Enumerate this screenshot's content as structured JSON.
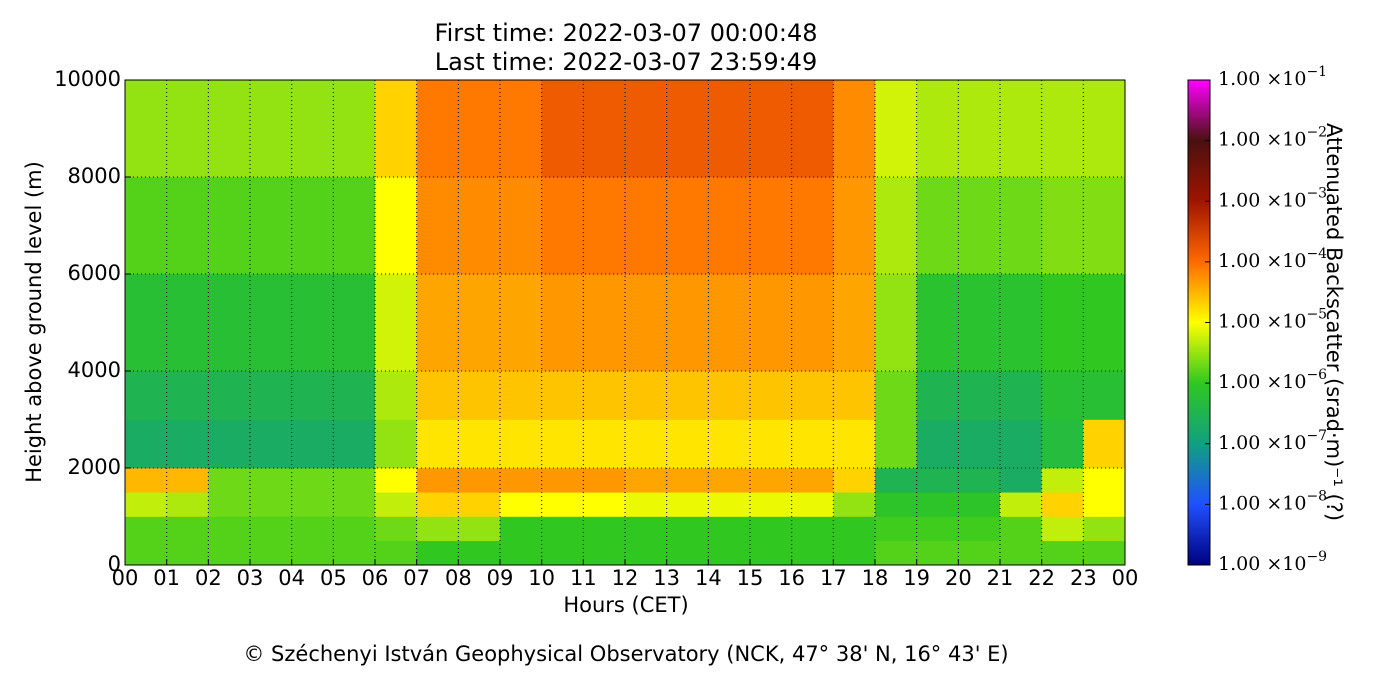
{
  "chart_data": {
    "type": "heatmap",
    "title": "First time: 2022-03-07 00:00:48",
    "subtitle": "Last time: 2022-03-07 23:59:49",
    "xlabel": "Hours (CET)",
    "ylabel": "Height above ground level (m)",
    "zlabel": "Attenuated Backscatter (srad·m)⁻¹ (?)",
    "caption": "© Széchenyi István Geophysical Observatory (NCK, 47° 38' N, 16° 43' E)",
    "xlim": [
      0,
      24
    ],
    "ylim": [
      0,
      10000
    ],
    "xticks": [
      {
        "value": 0,
        "label": "00"
      },
      {
        "value": 1,
        "label": "01"
      },
      {
        "value": 2,
        "label": "02"
      },
      {
        "value": 3,
        "label": "03"
      },
      {
        "value": 4,
        "label": "04"
      },
      {
        "value": 5,
        "label": "05"
      },
      {
        "value": 6,
        "label": "06"
      },
      {
        "value": 7,
        "label": "07"
      },
      {
        "value": 8,
        "label": "08"
      },
      {
        "value": 9,
        "label": "09"
      },
      {
        "value": 10,
        "label": "10"
      },
      {
        "value": 11,
        "label": "11"
      },
      {
        "value": 12,
        "label": "12"
      },
      {
        "value": 13,
        "label": "13"
      },
      {
        "value": 14,
        "label": "14"
      },
      {
        "value": 15,
        "label": "15"
      },
      {
        "value": 16,
        "label": "16"
      },
      {
        "value": 17,
        "label": "17"
      },
      {
        "value": 18,
        "label": "18"
      },
      {
        "value": 19,
        "label": "19"
      },
      {
        "value": 20,
        "label": "20"
      },
      {
        "value": 21,
        "label": "21"
      },
      {
        "value": 22,
        "label": "22"
      },
      {
        "value": 23,
        "label": "23"
      },
      {
        "value": 24,
        "label": "00"
      }
    ],
    "yticks": [
      0,
      2000,
      4000,
      6000,
      8000,
      10000
    ],
    "grid": true,
    "zscale": "log",
    "zlim": [
      1e-09,
      0.1
    ],
    "zticks": [
      {
        "value": 1e-09,
        "label": "1.00 ×10",
        "exponent": "−9"
      },
      {
        "value": 1e-08,
        "label": "1.00 ×10",
        "exponent": "−8"
      },
      {
        "value": 1e-07,
        "label": "1.00 ×10",
        "exponent": "−7"
      },
      {
        "value": 1e-06,
        "label": "1.00 ×10",
        "exponent": "−6"
      },
      {
        "value": 1e-05,
        "label": "1.00 ×10",
        "exponent": "−5"
      },
      {
        "value": 0.0001,
        "label": "1.00 ×10",
        "exponent": "−4"
      },
      {
        "value": 0.001,
        "label": "1.00 ×10",
        "exponent": "−3"
      },
      {
        "value": 0.01,
        "label": "1.00 ×10",
        "exponent": "−2"
      },
      {
        "value": 0.1,
        "label": "1.00 ×10",
        "exponent": "−1"
      }
    ],
    "colormap": [
      "#00007f",
      "#2050ff",
      "#10a080",
      "#30c820",
      "#ffff00",
      "#ff6a00",
      "#a01400",
      "#4a1010",
      "#ff00ff"
    ],
    "xbins": [
      0,
      1,
      2,
      3,
      4,
      5,
      6,
      7,
      8,
      9,
      10,
      11,
      12,
      13,
      14,
      15,
      16,
      17,
      18,
      19,
      20,
      21,
      22,
      23,
      24
    ],
    "ybins": [
      0,
      500,
      1000,
      1500,
      2000,
      3000,
      4000,
      6000,
      8000,
      10000
    ],
    "z": [
      [
        1.5e-06,
        1.5e-06,
        1.5e-06,
        1.5e-06,
        1.5e-06,
        1.5e-06,
        1.5e-06,
        1e-06,
        1e-06,
        1e-06,
        1e-06,
        1e-06,
        1e-06,
        1e-06,
        1e-06,
        1e-06,
        1e-06,
        1e-06,
        1.5e-06,
        1.5e-06,
        1.5e-06,
        1.5e-06,
        1.5e-06,
        1.5e-06
      ],
      [
        1.5e-06,
        1.5e-06,
        1.5e-06,
        1.5e-06,
        1.5e-06,
        1.5e-06,
        2e-06,
        3e-06,
        3e-06,
        1e-06,
        1e-06,
        1e-06,
        1e-06,
        1e-06,
        1e-06,
        1e-06,
        1e-06,
        1e-06,
        1.2e-06,
        1.2e-06,
        1.2e-06,
        1.5e-06,
        5e-06,
        3e-06
      ],
      [
        5e-06,
        4e-06,
        2e-06,
        2e-06,
        2e-06,
        2e-06,
        5e-06,
        2e-05,
        2e-05,
        1e-05,
        1e-05,
        1e-05,
        8e-06,
        8e-06,
        8e-06,
        8e-06,
        8e-06,
        3e-06,
        8e-07,
        8e-07,
        8e-07,
        5e-06,
        2e-05,
        1e-05
      ],
      [
        3e-05,
        3e-05,
        2e-06,
        2e-06,
        2e-06,
        2e-06,
        1e-05,
        5e-05,
        5e-05,
        5e-05,
        5e-05,
        5e-05,
        4e-05,
        4e-05,
        4e-05,
        4e-05,
        4e-05,
        2e-05,
        3e-07,
        3e-07,
        3e-07,
        2e-07,
        5e-06,
        1e-05
      ],
      [
        2e-07,
        2e-07,
        2e-07,
        2e-07,
        2e-07,
        2e-07,
        3e-06,
        1.5e-05,
        1.5e-05,
        1.5e-05,
        1.5e-05,
        1.5e-05,
        1.5e-05,
        1.5e-05,
        1.5e-05,
        1.5e-05,
        1.5e-05,
        1.5e-05,
        2e-06,
        2e-07,
        2e-07,
        2e-07,
        5e-07,
        2e-05
      ],
      [
        3e-07,
        3e-07,
        3e-07,
        3e-07,
        3e-07,
        3e-07,
        4e-06,
        2.5e-05,
        2.5e-05,
        2.5e-05,
        2.5e-05,
        2.5e-05,
        2.5e-05,
        2.5e-05,
        2.5e-05,
        2.5e-05,
        2.5e-05,
        2.5e-05,
        2e-06,
        3e-07,
        3e-07,
        3e-07,
        6e-07,
        6e-07
      ],
      [
        6e-07,
        6e-07,
        6e-07,
        6e-07,
        6e-07,
        6e-07,
        6e-06,
        4e-05,
        4e-05,
        4e-05,
        5e-05,
        5e-05,
        5e-05,
        5e-05,
        5e-05,
        5e-05,
        5e-05,
        4e-05,
        3e-06,
        7e-07,
        7e-07,
        7e-07,
        1e-06,
        1e-06
      ],
      [
        1.5e-06,
        1.5e-06,
        1.5e-06,
        1.5e-06,
        1.5e-06,
        1.5e-06,
        1e-05,
        6e-05,
        6e-05,
        6e-05,
        8e-05,
        8e-05,
        8e-05,
        8e-05,
        8e-05,
        8e-05,
        8e-05,
        5e-05,
        4e-06,
        2e-06,
        2e-06,
        2e-06,
        2.5e-06,
        2.5e-06
      ],
      [
        3e-06,
        3e-06,
        3e-06,
        3e-06,
        3e-06,
        3e-06,
        2e-05,
        8e-05,
        8e-05,
        8e-05,
        0.00015,
        0.00015,
        0.00015,
        0.00015,
        0.00015,
        0.00015,
        0.00015,
        6e-05,
        6e-06,
        4e-06,
        4e-06,
        4e-06,
        4e-06,
        4e-06
      ]
    ]
  }
}
